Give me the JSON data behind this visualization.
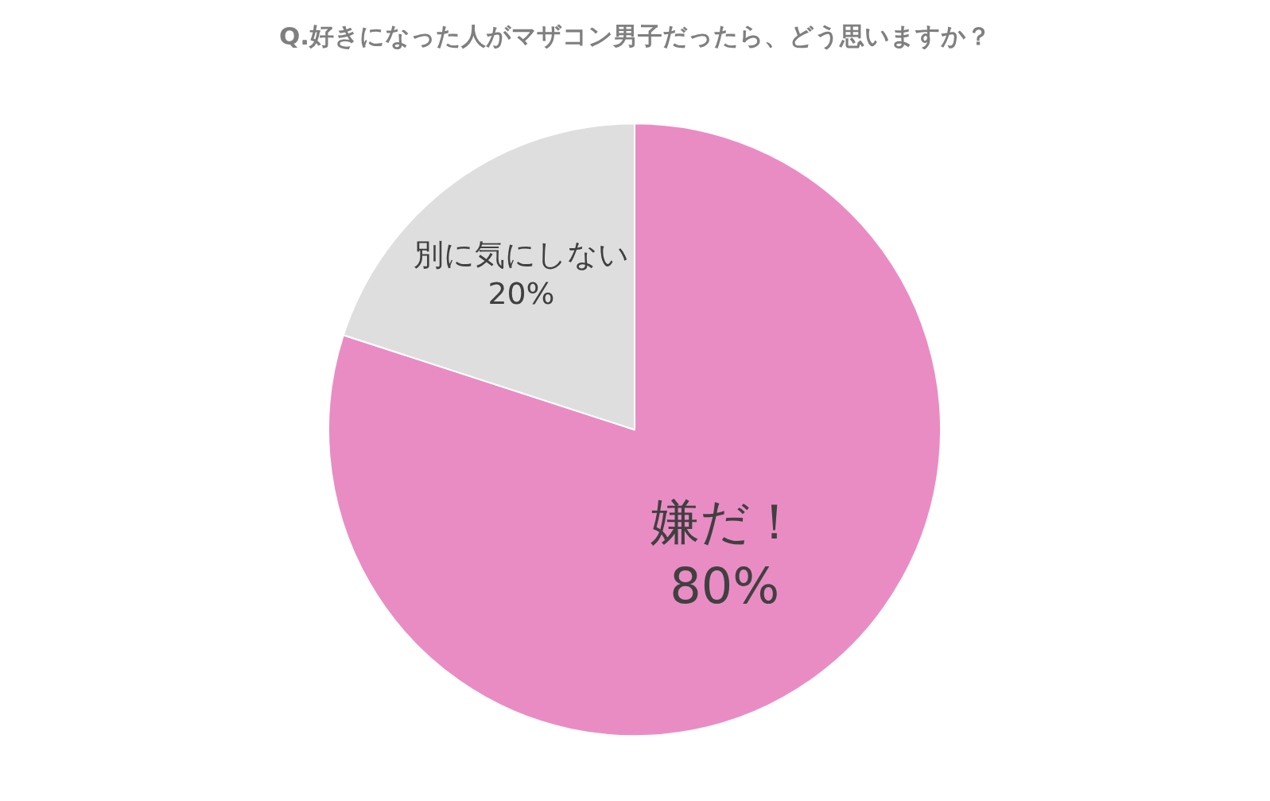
{
  "chart_data": {
    "type": "pie",
    "title": "Q.好きになった人がマザコン男子だったら、どう思いますか？",
    "categories": [
      "嫌だ！",
      "別に気にしない"
    ],
    "values": [
      80,
      20
    ],
    "value_labels": [
      "80%",
      "20%"
    ],
    "colors": [
      "#ea8cc4",
      "#dedede"
    ],
    "legend": false
  }
}
